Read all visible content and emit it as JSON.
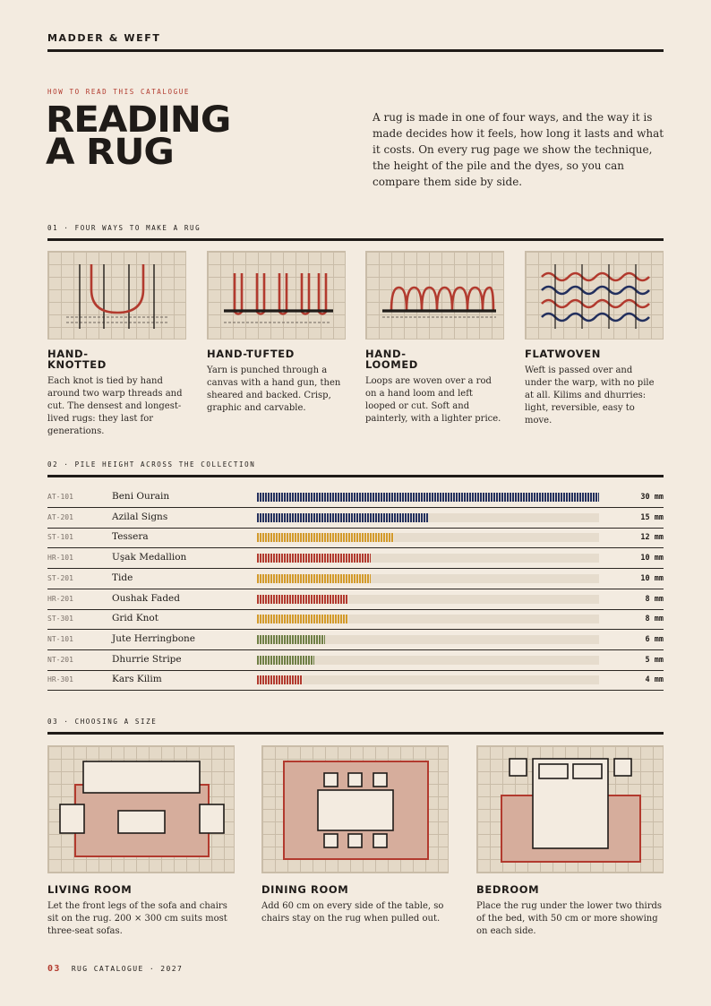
{
  "header": {
    "brand": "MADDER & WEFT"
  },
  "hero": {
    "kicker": "HOW TO READ THIS CATALOGUE",
    "title_line1": "READING",
    "title_line2": "A RUG",
    "intro": "A rug is made in one of four ways, and the way it is made decides how it feels, how long it lasts and what it costs. On every rug page we show the technique, the height of the pile and the dyes, so you can compare them side by side."
  },
  "section1": {
    "label": "01 · FOUR WAYS TO MAKE A RUG",
    "techniques": [
      {
        "title": "HAND-KNOTTED",
        "description": "Each knot is tied by hand around two warp threads and cut. The densest and longest-lived rugs: they last for generations."
      },
      {
        "title": "HAND-TUFTED",
        "description": "Yarn is punched through a canvas with a hand gun, then sheared and backed. Crisp, graphic and carvable."
      },
      {
        "title": "HAND-LOOMED",
        "description": "Loops are woven over a rod on a hand loom and left looped or cut. Soft and painterly, with a lighter price."
      },
      {
        "title": "FLATWOVEN",
        "description": "Weft is passed over and under the warp, with no pile at all. Kilims and dhurries: light, reversible, easy to move."
      }
    ]
  },
  "section2": {
    "label": "02 · PILE HEIGHT ACROSS THE COLLECTION",
    "unit": "mm",
    "max_mm": 30,
    "colors": {
      "HR": "#b23a2e",
      "AT": "#23305e",
      "ST": "#d39a2a",
      "NT": "#6f7f45"
    },
    "rows": [
      {
        "code": "AT-101",
        "name": "Beni Ourain",
        "mm": 30,
        "value_label": "30 mm"
      },
      {
        "code": "AT-201",
        "name": "Azilal Signs",
        "mm": 15,
        "value_label": "15 mm"
      },
      {
        "code": "ST-101",
        "name": "Tessera",
        "mm": 12,
        "value_label": "12 mm"
      },
      {
        "code": "HR-101",
        "name": "Uşak Medallion",
        "mm": 10,
        "value_label": "10 mm"
      },
      {
        "code": "ST-201",
        "name": "Tide",
        "mm": 10,
        "value_label": "10 mm"
      },
      {
        "code": "HR-201",
        "name": "Oushak Faded",
        "mm": 8,
        "value_label": "8 mm"
      },
      {
        "code": "ST-301",
        "name": "Grid Knot",
        "mm": 8,
        "value_label": "8 mm"
      },
      {
        "code": "NT-101",
        "name": "Jute Herringbone",
        "mm": 6,
        "value_label": "6 mm"
      },
      {
        "code": "NT-201",
        "name": "Dhurrie Stripe",
        "mm": 5,
        "value_label": "5 mm"
      },
      {
        "code": "HR-301",
        "name": "Kars Kilim",
        "mm": 4,
        "value_label": "4 mm"
      }
    ]
  },
  "section3": {
    "label": "03 · CHOOSING A SIZE",
    "rooms": [
      {
        "title": "LIVING ROOM",
        "description": "Let the front legs of the sofa and chairs sit on the rug. 200 × 300 cm suits most three-seat sofas."
      },
      {
        "title": "DINING ROOM",
        "description": "Add 60 cm on every side of the table, so chairs stay on the rug when pulled out."
      },
      {
        "title": "BEDROOM",
        "description": "Place the rug under the lower two thirds of the bed, with 50 cm or more showing on each side."
      }
    ]
  },
  "footer": {
    "page": "03",
    "text": "RUG CATALOGUE · 2027"
  }
}
